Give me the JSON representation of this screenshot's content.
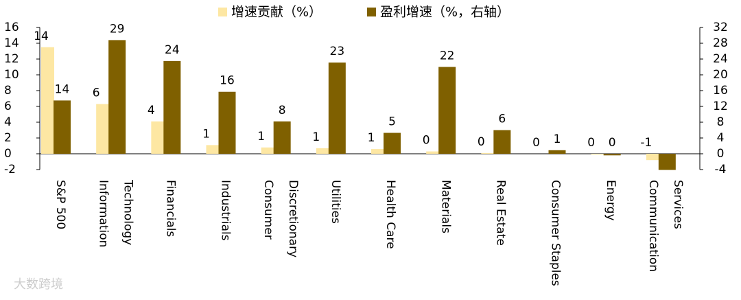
{
  "chart_data": {
    "type": "bar",
    "categories": [
      [
        "S&P 500"
      ],
      [
        "Information",
        "Technology"
      ],
      [
        "Financials"
      ],
      [
        "Industrials"
      ],
      [
        "Consumer",
        "Discretionary"
      ],
      [
        "Utilities"
      ],
      [
        "Health Care"
      ],
      [
        "Materials"
      ],
      [
        "Real Estate"
      ],
      [
        "Consumer Staples"
      ],
      [
        "Energy"
      ],
      [
        "Communication",
        "Services"
      ]
    ],
    "series": [
      {
        "name": "增速贡献（%）",
        "color": "#fde7a3",
        "axis": "y",
        "values": [
          13.5,
          6.3,
          4.1,
          1.1,
          0.8,
          0.7,
          0.6,
          0.3,
          0.1,
          0.0,
          -0.1,
          -0.8
        ],
        "value_labels": [
          "14",
          "6",
          "4",
          "1",
          "1",
          "1",
          "1",
          "0",
          "0",
          "0",
          "0",
          "-1"
        ]
      },
      {
        "name": "盈利增速（%，右轴）",
        "color": "#7f6000",
        "axis": "y2",
        "values": [
          13.5,
          28.8,
          23.5,
          15.7,
          8.2,
          23.1,
          5.3,
          22,
          6,
          0.9,
          -0.4,
          -4.1
        ],
        "value_labels": [
          "14",
          "29",
          "24",
          "16",
          "8",
          "23",
          "5",
          "22",
          "6",
          "1",
          "0",
          null
        ]
      }
    ],
    "ylim": [
      -2,
      16
    ],
    "yticks": [
      -2,
      0,
      2,
      4,
      6,
      8,
      10,
      12,
      14,
      16
    ],
    "y2lim": [
      -4,
      32
    ],
    "y2ticks": [
      -4,
      0,
      4,
      8,
      12,
      16,
      20,
      24,
      28,
      32
    ],
    "legend": "top",
    "watermark": "大数跨境"
  }
}
